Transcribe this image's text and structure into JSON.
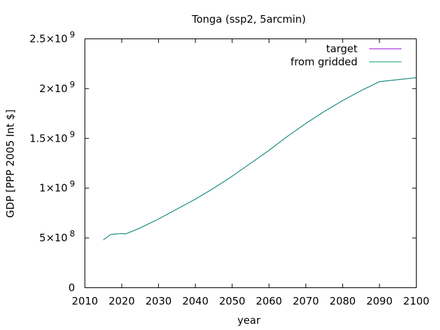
{
  "chart_data": {
    "type": "line",
    "title": "Tonga (ssp2, 5arcmin)",
    "xlabel": "year",
    "ylabel": "GDP [PPP 2005 Int $]",
    "xlim": [
      2010,
      2100
    ],
    "ylim": [
      0,
      2500000000
    ],
    "xticks": [
      2010,
      2020,
      2030,
      2040,
      2050,
      2060,
      2070,
      2080,
      2090,
      2100
    ],
    "yticks": [
      {
        "value": 0,
        "mantissa": "0",
        "exponent": ""
      },
      {
        "value": 500000000,
        "mantissa": "5×10",
        "exponent": "8"
      },
      {
        "value": 1000000000,
        "mantissa": "1×10",
        "exponent": "9"
      },
      {
        "value": 1500000000,
        "mantissa": "1.5×10",
        "exponent": "9"
      },
      {
        "value": 2000000000,
        "mantissa": "2×10",
        "exponent": "9"
      },
      {
        "value": 2500000000,
        "mantissa": "2.5×10",
        "exponent": "9"
      }
    ],
    "grid": false,
    "legend_position": "top-right",
    "colors": {
      "target": "#9400d3",
      "from_gridded": "#009e73",
      "axis": "#000000"
    },
    "series": [
      {
        "name": "target",
        "x": [
          2015,
          2017,
          2020,
          2021,
          2025,
          2030,
          2035,
          2040,
          2045,
          2050,
          2055,
          2060,
          2065,
          2070,
          2075,
          2080,
          2085,
          2090,
          2095,
          2100
        ],
        "y": [
          480000000,
          535000000,
          545000000,
          540000000,
          600000000,
          690000000,
          790000000,
          890000000,
          1000000000,
          1120000000,
          1250000000,
          1380000000,
          1520000000,
          1650000000,
          1770000000,
          1880000000,
          1980000000,
          2070000000,
          2090000000,
          2110000000
        ]
      },
      {
        "name": "from gridded",
        "x": [
          2015,
          2017,
          2020,
          2021,
          2025,
          2030,
          2035,
          2040,
          2045,
          2050,
          2055,
          2060,
          2065,
          2070,
          2075,
          2080,
          2085,
          2090,
          2095,
          2100
        ],
        "y": [
          480000000,
          535000000,
          545000000,
          540000000,
          600000000,
          690000000,
          790000000,
          890000000,
          1000000000,
          1120000000,
          1250000000,
          1380000000,
          1520000000,
          1650000000,
          1770000000,
          1880000000,
          1980000000,
          2070000000,
          2090000000,
          2110000000
        ]
      }
    ]
  }
}
